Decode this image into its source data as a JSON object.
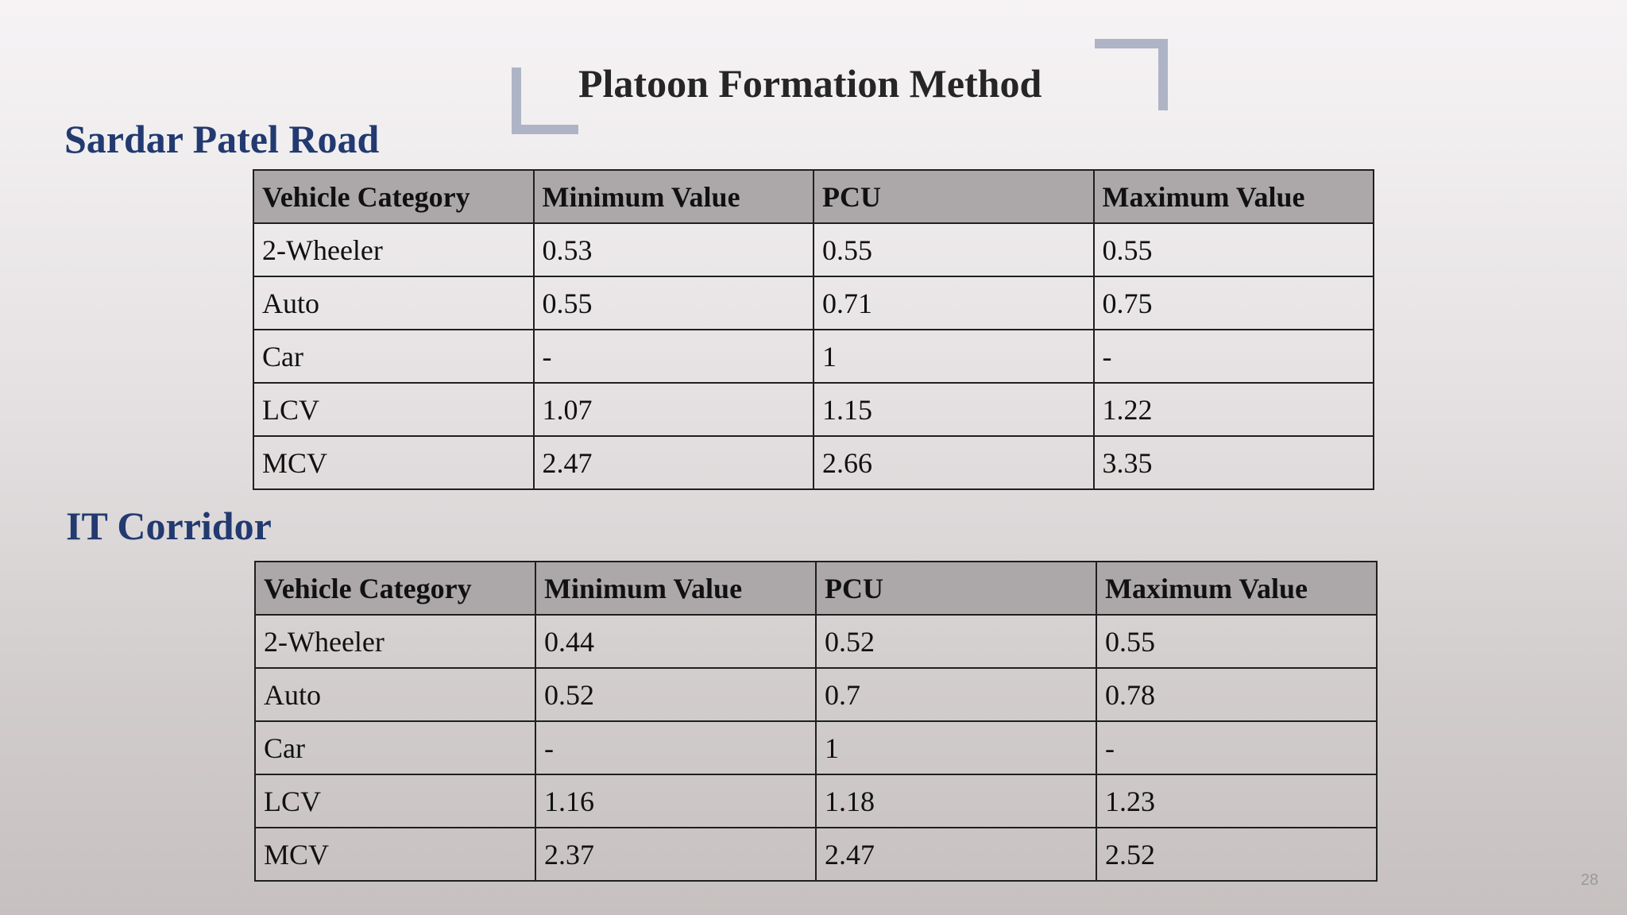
{
  "slide": {
    "title": "Platoon Formation Method",
    "page_number": "28"
  },
  "sections": [
    {
      "heading": "Sardar Patel Road",
      "columns": [
        "Vehicle Category",
        "Minimum Value",
        "PCU",
        "Maximum Value"
      ],
      "rows": [
        [
          "2-Wheeler",
          "0.53",
          "0.55",
          "0.55"
        ],
        [
          "Auto",
          "0.55",
          "0.71",
          "0.75"
        ],
        [
          "Car",
          "-",
          "1",
          "-"
        ],
        [
          "LCV",
          "1.07",
          "1.15",
          "1.22"
        ],
        [
          "MCV",
          "2.47",
          "2.66",
          "3.35"
        ]
      ]
    },
    {
      "heading": "IT Corridor",
      "columns": [
        "Vehicle Category",
        "Minimum Value",
        "PCU",
        "Maximum Value"
      ],
      "rows": [
        [
          "2-Wheeler",
          "0.44",
          "0.52",
          "0.55"
        ],
        [
          "Auto",
          "0.52",
          "0.7",
          "0.78"
        ],
        [
          "Car",
          "-",
          "1",
          "-"
        ],
        [
          "LCV",
          "1.16",
          "1.18",
          "1.23"
        ],
        [
          "MCV",
          "2.37",
          "2.47",
          "2.52"
        ]
      ]
    }
  ],
  "colors": {
    "heading": "#223a70",
    "title": "#262626",
    "table_header_bg": "#aca8a9",
    "accent_bracket": "#aeb4c6"
  }
}
